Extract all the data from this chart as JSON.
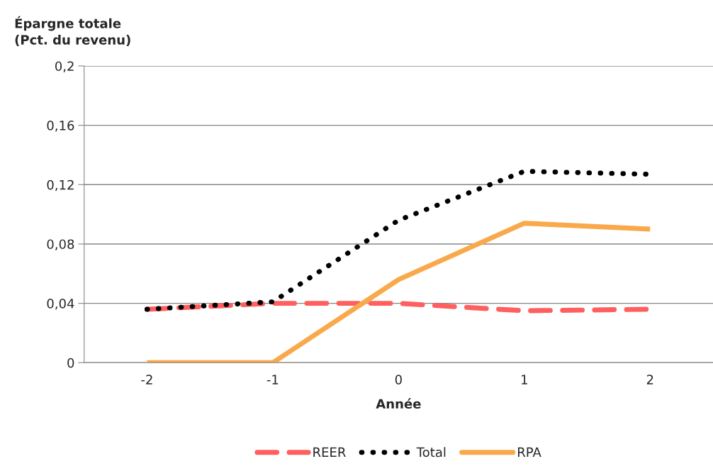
{
  "chart_data": {
    "type": "line",
    "ylabel": "Épargne totale\n(Pct. du revenu)",
    "xlabel": "Année",
    "categories": [
      "-2",
      "-1",
      "0",
      "1",
      "2"
    ],
    "series": [
      {
        "name": "REER",
        "color": "#ff5f5f",
        "line_style": "dashed",
        "values": [
          0.036,
          0.04,
          0.04,
          0.035,
          0.036
        ]
      },
      {
        "name": "Total",
        "color": "#000000",
        "line_style": "dotted",
        "values": [
          0.036,
          0.041,
          0.096,
          0.129,
          0.127
        ]
      },
      {
        "name": "RPA",
        "color": "#f9a94b",
        "line_style": "solid",
        "values": [
          0,
          0,
          0.056,
          0.094,
          0.09
        ]
      }
    ],
    "ylim": [
      0,
      0.2
    ],
    "yticks": [
      0,
      {
        "value": 0.04,
        "label": "0,04"
      },
      {
        "value": 0.08,
        "label": "0,08"
      },
      {
        "value": 0.12,
        "label": "0,12"
      },
      {
        "value": 0.16,
        "label": "0,16"
      },
      {
        "value": 0.2,
        "label": "0,2"
      }
    ],
    "grid": "y",
    "legend": "bottom",
    "marker": "none"
  }
}
